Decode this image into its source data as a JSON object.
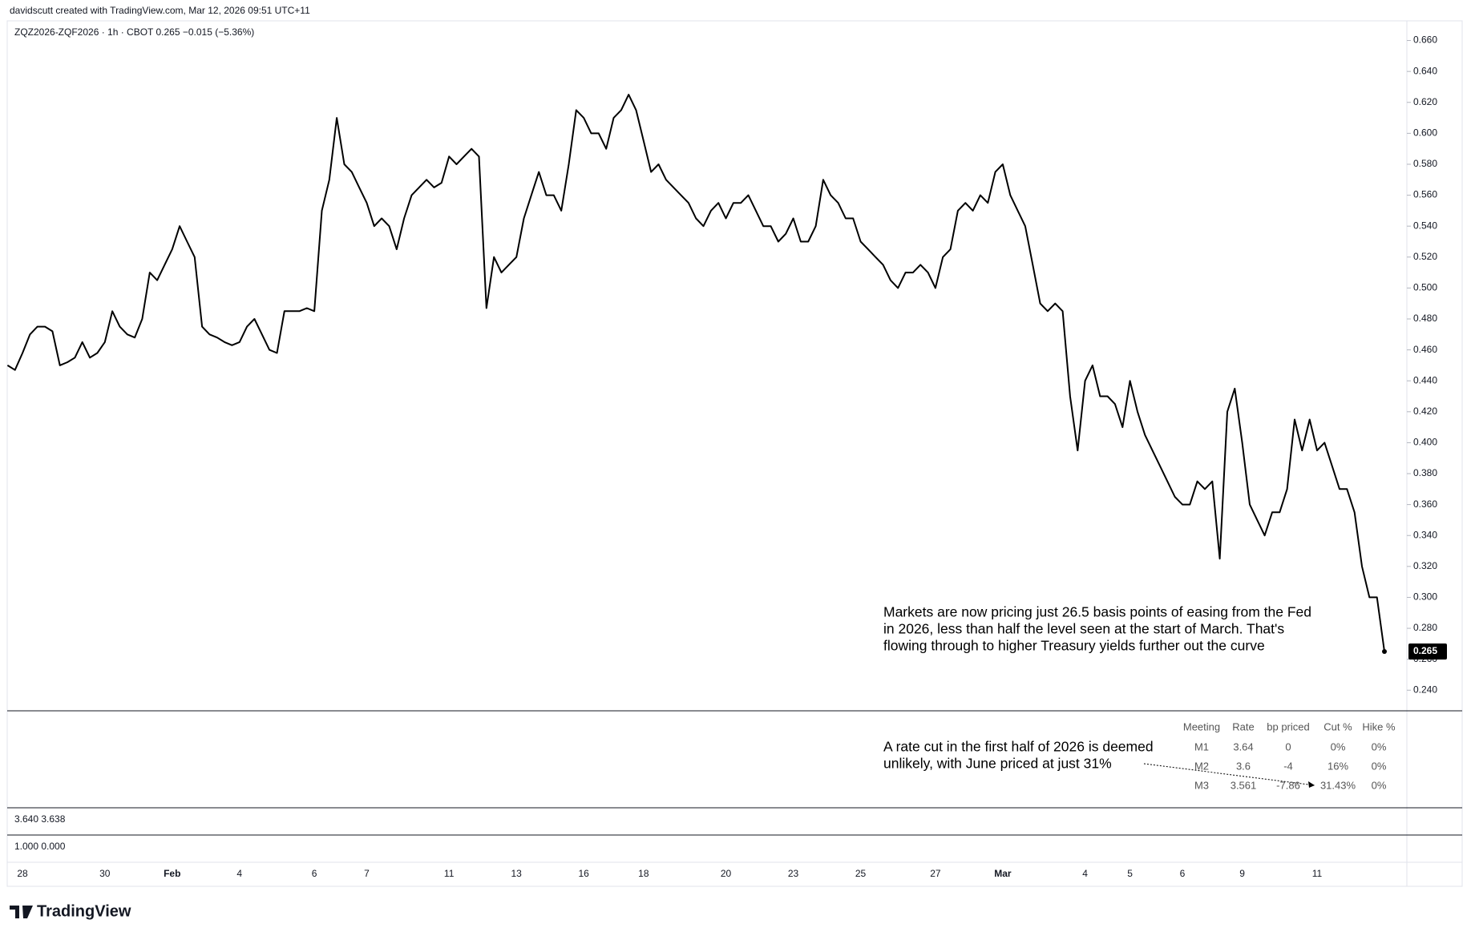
{
  "header": "davidscutt created with TradingView.com, Mar 12, 2026 09:51 UTC+11",
  "chart_data": {
    "type": "line",
    "symbol_info": "ZQZ2026-ZQF2026 · 1h · CBOT  0.265  −0.015 (−5.36%)",
    "color": "#000000",
    "grid": false,
    "categories": [
      null,
      null,
      "28",
      null,
      null,
      null,
      null,
      null,
      null,
      null,
      null,
      null,
      null,
      "30",
      null,
      null,
      null,
      null,
      null,
      null,
      null,
      null,
      "Feb",
      null,
      null,
      null,
      null,
      null,
      null,
      null,
      null,
      "4",
      null,
      null,
      null,
      null,
      null,
      null,
      null,
      null,
      null,
      "6",
      null,
      null,
      null,
      null,
      null,
      null,
      "7",
      null,
      null,
      null,
      null,
      null,
      null,
      null,
      null,
      null,
      null,
      "11",
      null,
      null,
      null,
      null,
      null,
      null,
      null,
      null,
      "13",
      null,
      null,
      null,
      null,
      null,
      null,
      null,
      null,
      "16",
      null,
      null,
      null,
      null,
      null,
      null,
      null,
      "18",
      null,
      null,
      null,
      null,
      null,
      null,
      null,
      null,
      null,
      null,
      "20",
      null,
      null,
      null,
      null,
      null,
      null,
      null,
      null,
      "23",
      null,
      null,
      null,
      null,
      null,
      null,
      null,
      null,
      "25",
      null,
      null,
      null,
      null,
      null,
      null,
      null,
      null,
      null,
      "27",
      null,
      null,
      null,
      null,
      null,
      null,
      null,
      null,
      "Mar",
      null,
      null,
      null,
      null,
      null,
      null,
      null,
      null,
      null,
      null,
      "4",
      null,
      null,
      null,
      null,
      null,
      "5",
      null,
      null,
      null,
      null,
      null,
      null,
      "6",
      null,
      null,
      null,
      null,
      null,
      null,
      null,
      "9",
      null,
      null,
      null,
      null,
      null,
      null,
      null,
      null,
      null,
      "11",
      null,
      null,
      null,
      null,
      null,
      null,
      null,
      null,
      null
    ],
    "values": [
      0.45,
      0.447,
      0.458,
      0.47,
      0.475,
      0.475,
      0.472,
      0.45,
      0.452,
      0.455,
      0.465,
      0.455,
      0.458,
      0.465,
      0.485,
      0.475,
      0.47,
      0.468,
      0.48,
      0.51,
      0.505,
      0.515,
      0.525,
      0.54,
      0.53,
      0.52,
      0.475,
      0.47,
      0.468,
      0.465,
      0.463,
      0.465,
      0.475,
      0.48,
      0.47,
      0.46,
      0.458,
      0.485,
      0.485,
      0.485,
      0.487,
      0.485,
      0.55,
      0.57,
      0.61,
      0.58,
      0.575,
      0.565,
      0.555,
      0.54,
      0.545,
      0.54,
      0.525,
      0.545,
      0.56,
      0.565,
      0.57,
      0.565,
      0.568,
      0.585,
      0.58,
      0.585,
      0.59,
      0.585,
      0.487,
      0.52,
      0.51,
      0.515,
      0.52,
      0.545,
      0.56,
      0.575,
      0.56,
      0.56,
      0.55,
      0.58,
      0.615,
      0.61,
      0.6,
      0.6,
      0.59,
      0.61,
      0.615,
      0.625,
      0.615,
      0.595,
      0.575,
      0.58,
      0.57,
      0.565,
      0.56,
      0.555,
      0.545,
      0.54,
      0.55,
      0.555,
      0.545,
      0.555,
      0.555,
      0.56,
      0.55,
      0.54,
      0.54,
      0.53,
      0.535,
      0.545,
      0.53,
      0.53,
      0.54,
      0.57,
      0.56,
      0.555,
      0.545,
      0.545,
      0.53,
      0.525,
      0.52,
      0.515,
      0.505,
      0.5,
      0.51,
      0.51,
      0.515,
      0.51,
      0.5,
      0.52,
      0.525,
      0.55,
      0.555,
      0.55,
      0.56,
      0.555,
      0.575,
      0.58,
      0.56,
      0.55,
      0.54,
      0.515,
      0.49,
      0.485,
      0.49,
      0.485,
      0.43,
      0.395,
      0.44,
      0.45,
      0.43,
      0.43,
      0.425,
      0.41,
      0.44,
      0.42,
      0.405,
      0.395,
      0.385,
      0.375,
      0.365,
      0.36,
      0.36,
      0.375,
      0.37,
      0.375,
      0.325,
      0.42,
      0.435,
      0.4,
      0.36,
      0.35,
      0.34,
      0.355,
      0.355,
      0.37,
      0.415,
      0.395,
      0.415,
      0.395,
      0.4,
      0.385,
      0.37,
      0.37,
      0.355,
      0.32,
      0.3,
      0.3,
      0.265
    ],
    "ylim": [
      0.2334,
      0.6665
    ],
    "yticks": [
      {
        "value": 0.24,
        "label": "0.240"
      },
      {
        "value": 0.26,
        "label": "0.260"
      },
      {
        "value": 0.28,
        "label": "0.280"
      },
      {
        "value": 0.3,
        "label": "0.300"
      },
      {
        "value": 0.32,
        "label": "0.320"
      },
      {
        "value": 0.34,
        "label": "0.340"
      },
      {
        "value": 0.36,
        "label": "0.360"
      },
      {
        "value": 0.38,
        "label": "0.380"
      },
      {
        "value": 0.4,
        "label": "0.400"
      },
      {
        "value": 0.42,
        "label": "0.420"
      },
      {
        "value": 0.44,
        "label": "0.440"
      },
      {
        "value": 0.46,
        "label": "0.460"
      },
      {
        "value": 0.48,
        "label": "0.480"
      },
      {
        "value": 0.5,
        "label": "0.500"
      },
      {
        "value": 0.52,
        "label": "0.520"
      },
      {
        "value": 0.54,
        "label": "0.540"
      },
      {
        "value": 0.56,
        "label": "0.560"
      },
      {
        "value": 0.58,
        "label": "0.580"
      },
      {
        "value": 0.6,
        "label": "0.600"
      },
      {
        "value": 0.62,
        "label": "0.620"
      },
      {
        "value": 0.64,
        "label": "0.640"
      },
      {
        "value": 0.66,
        "label": "0.660"
      }
    ],
    "annotations": [
      {
        "lines": [
          "Markets are now pricing just 26.5 basis points of easing from the Fed",
          "in 2026, less than half the level seen at the start of March. That's",
          "flowing through to higher Treasury yields further out the curve"
        ]
      },
      {
        "lines": [
          "A rate cut in the first half of 2026 is deemed",
          "unlikely, with June priced at just 31%"
        ]
      }
    ]
  },
  "table": {
    "header": [
      "Meeting",
      "Rate",
      "bp priced",
      "Cut %",
      "Hike %"
    ],
    "rows": [
      [
        "M1",
        "3.64",
        "0",
        "0%",
        "0%"
      ],
      [
        "M2",
        "3.6",
        "-4",
        "16%",
        "0%"
      ],
      [
        "M3",
        "3.561",
        "-7.86",
        "31.43%",
        "0%"
      ]
    ]
  },
  "panes": [
    "3.640  3.638",
    "1.000  0.000"
  ],
  "logo": "TradingView"
}
